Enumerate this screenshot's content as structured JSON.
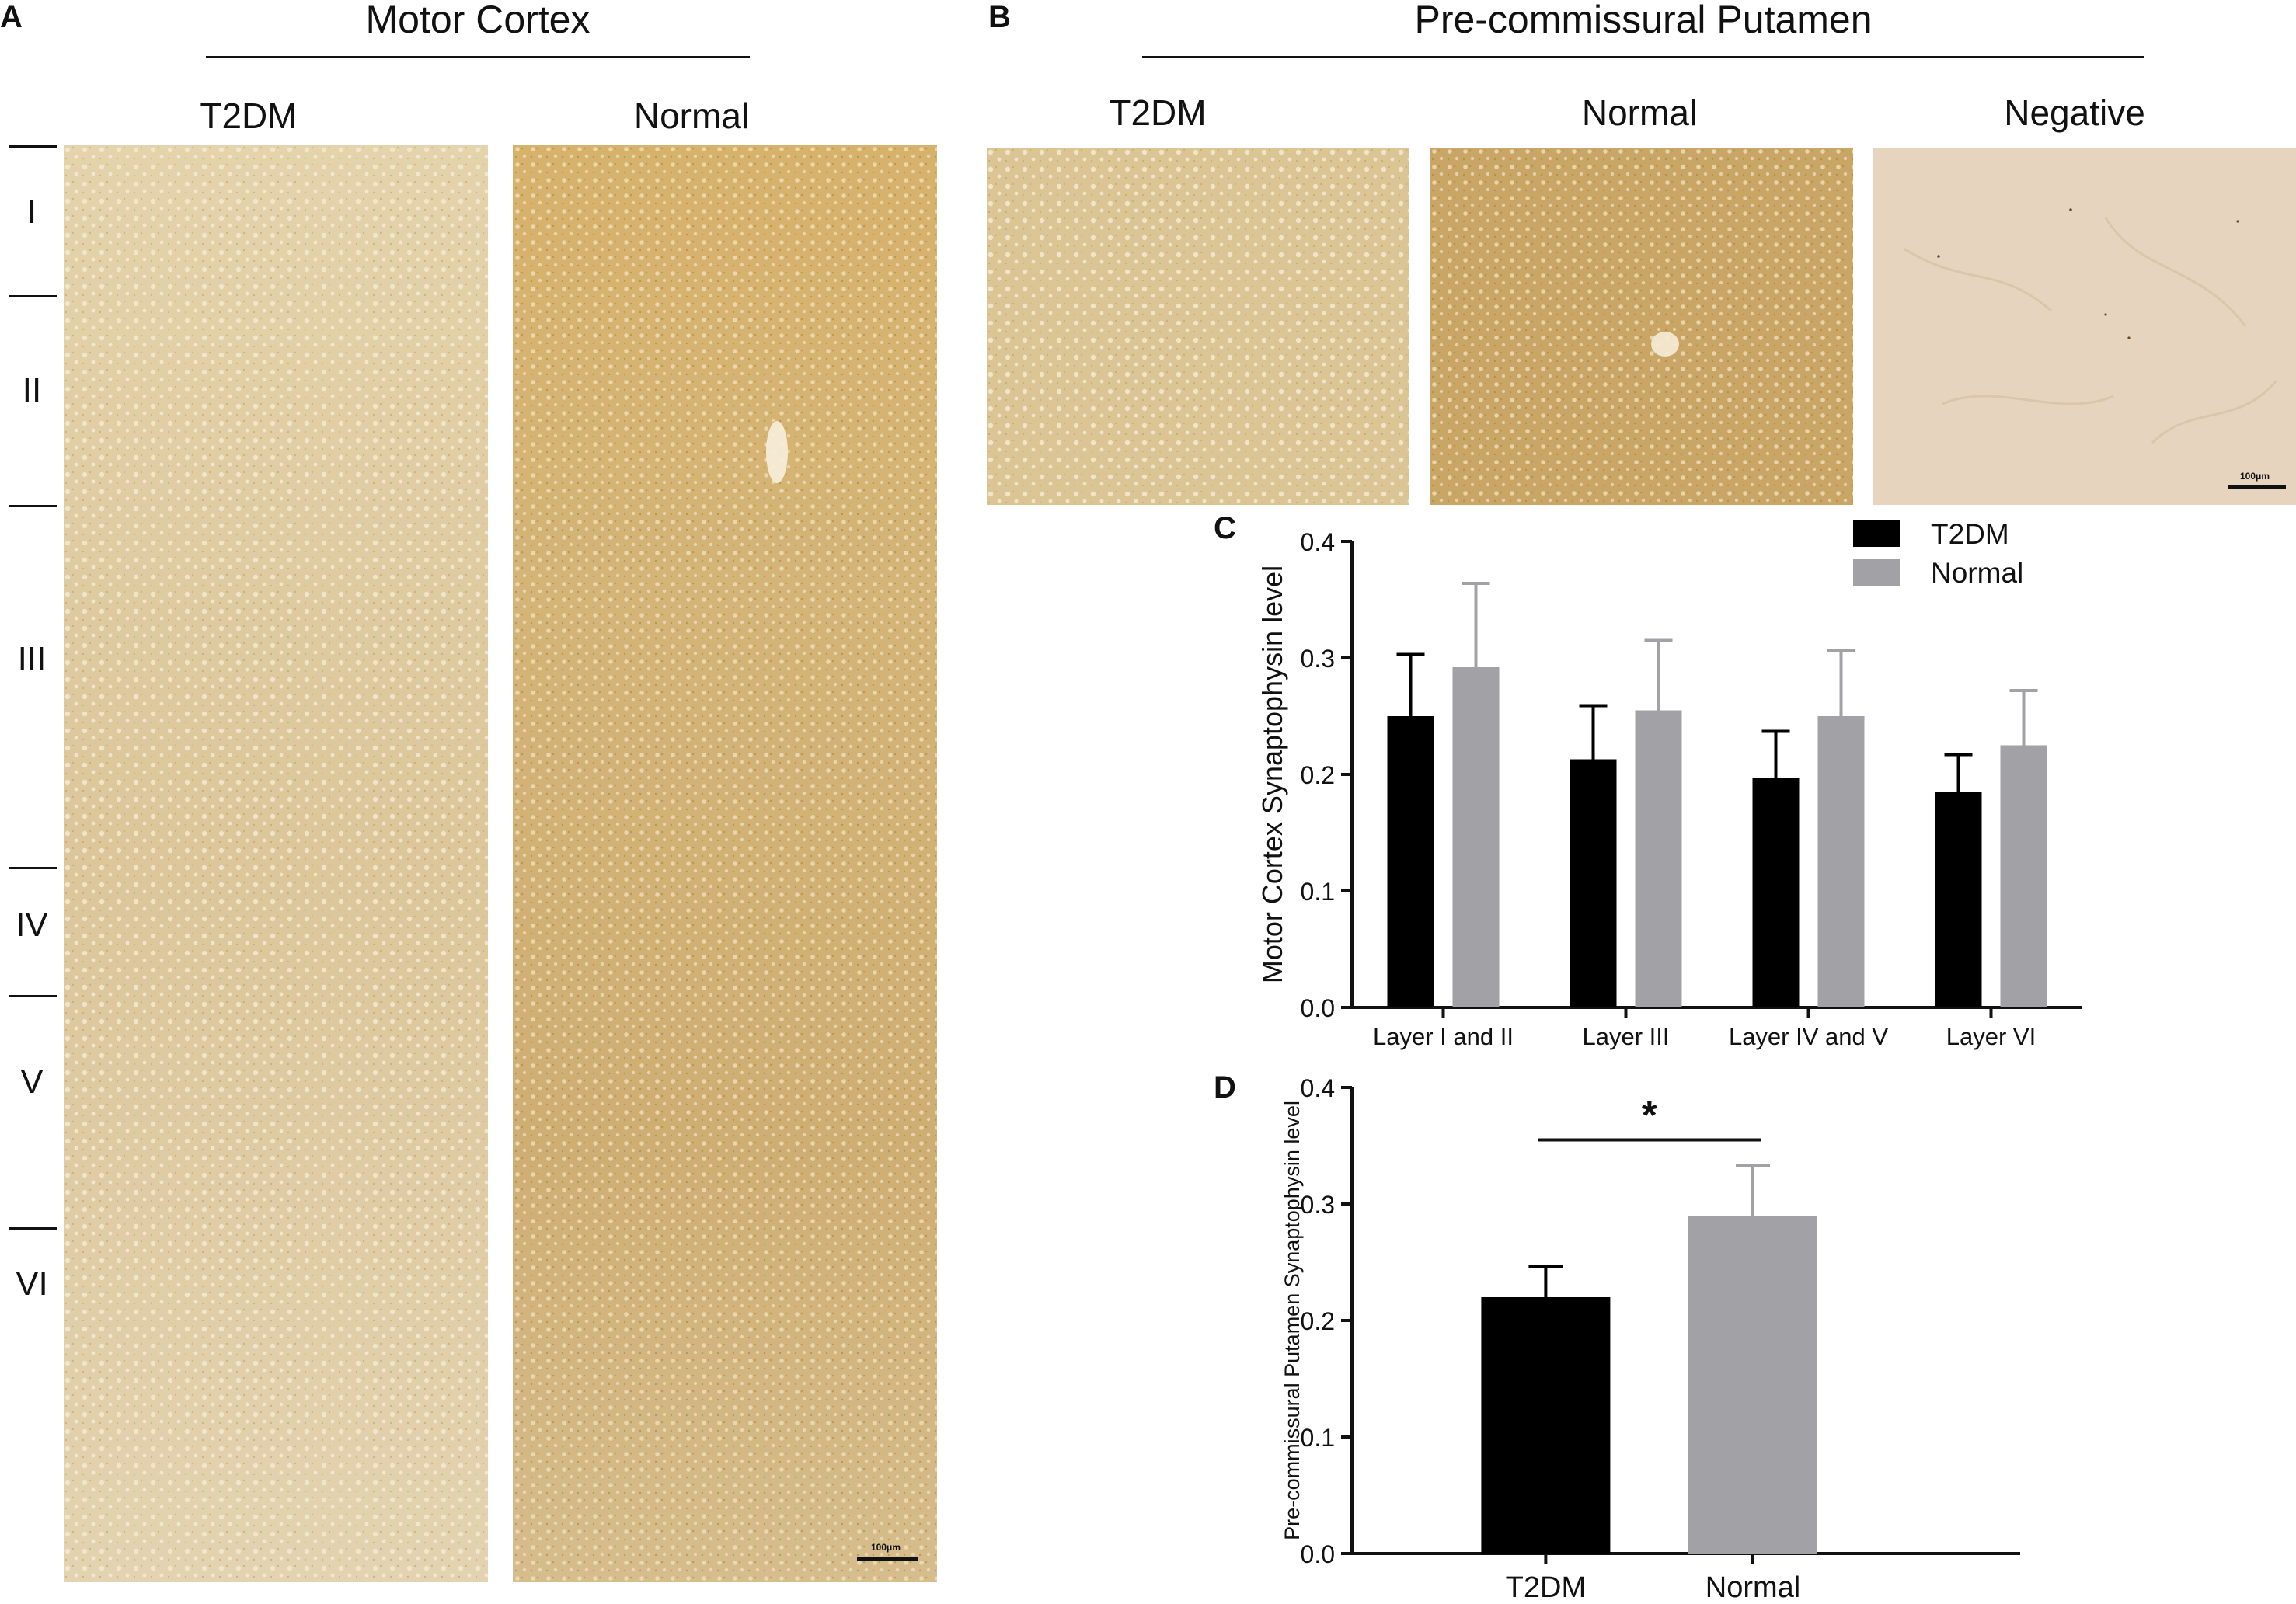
{
  "panelA": {
    "letter": "A",
    "title": "Motor Cortex",
    "columns": [
      "T2DM",
      "Normal"
    ],
    "layers": [
      "I",
      "II",
      "III",
      "IV",
      "V",
      "VI"
    ],
    "scale_label": "100μm"
  },
  "panelB": {
    "letter": "B",
    "title": "Pre-commissural Putamen",
    "columns": [
      "T2DM",
      "Normal",
      "Negative"
    ],
    "scale_label": "100μm"
  },
  "colors": {
    "t2dm": "#000000",
    "normal": "#a2a2a6",
    "tissue_light": "#e6d4aa",
    "tissue_dark": "#caa363",
    "negative": "#e9d8c4"
  },
  "chart_data": [
    {
      "panel": "C",
      "type": "bar",
      "ylabel": "Motor Cortex Synaptophysin level",
      "xlabel": "",
      "categories": [
        "Layer I and II",
        "Layer III",
        "Layer IV and V",
        "Layer VI"
      ],
      "series": [
        {
          "name": "T2DM",
          "values": [
            0.25,
            0.213,
            0.197,
            0.185
          ],
          "errors": [
            0.053,
            0.046,
            0.04,
            0.032
          ]
        },
        {
          "name": "Normal",
          "values": [
            0.292,
            0.255,
            0.25,
            0.225
          ],
          "errors": [
            0.072,
            0.06,
            0.056,
            0.047
          ]
        }
      ],
      "ylim": [
        0,
        0.4
      ],
      "yticks": [
        "0.0",
        "0.1",
        "0.2",
        "0.3",
        "0.4"
      ],
      "legend": "top-right",
      "grid": false
    },
    {
      "panel": "D",
      "type": "bar",
      "ylabel": "Pre-commissural Putamen Synaptophysin level",
      "xlabel": "",
      "categories": [
        "T2DM",
        "Normal"
      ],
      "values": [
        0.22,
        0.29
      ],
      "errors": [
        0.026,
        0.043
      ],
      "ylim": [
        0,
        0.4
      ],
      "yticks": [
        "0.0",
        "0.1",
        "0.2",
        "0.3",
        "0.4"
      ],
      "significance": "*",
      "grid": false
    }
  ]
}
